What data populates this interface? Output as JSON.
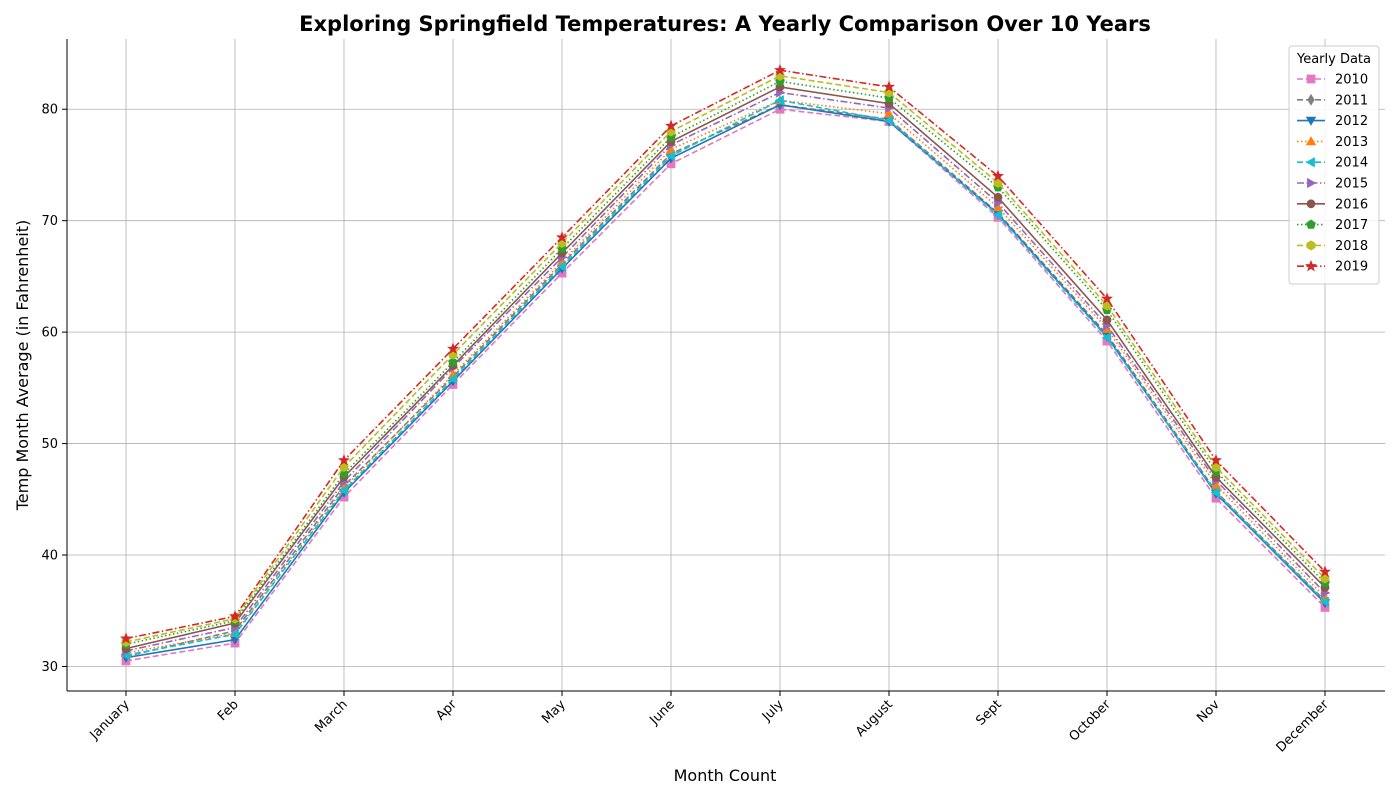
{
  "chart_data": {
    "type": "line",
    "title": "Exploring Springfield Temperatures: A Yearly Comparison Over 10 Years",
    "xlabel": "Month Count",
    "ylabel": "Temp Month Average (in Fahrenheit)",
    "categories": [
      "January",
      "Feb",
      "March",
      "Apr",
      "May",
      "June",
      "July",
      "August",
      "Sept",
      "October",
      "Nov",
      "December"
    ],
    "ylim": [
      27.8,
      86.3
    ],
    "yticks": [
      30,
      40,
      50,
      60,
      70,
      80
    ],
    "grid": true,
    "legend": {
      "title": "Yearly Data",
      "placement": "top-right"
    },
    "series": [
      {
        "name": "2010",
        "color": "#e377c2",
        "dash": "dashed",
        "marker": "square",
        "values": [
          30.5,
          32.1,
          45.2,
          55.3,
          65.3,
          75.1,
          80.0,
          78.9,
          70.3,
          59.2,
          45.1,
          35.3
        ]
      },
      {
        "name": "2011",
        "color": "#7f7f7f",
        "dash": "dashed",
        "marker": "thin_diamond",
        "values": [
          30.9,
          33.2,
          46.2,
          56.0,
          66.1,
          76.0,
          80.4,
          79.1,
          70.7,
          59.8,
          45.7,
          35.9
        ]
      },
      {
        "name": "2012",
        "color": "#1f77b4",
        "dash": "solid",
        "marker": "triangle_down",
        "values": [
          30.8,
          32.4,
          45.6,
          55.6,
          65.7,
          75.6,
          80.4,
          78.9,
          70.6,
          59.6,
          45.5,
          35.7
        ]
      },
      {
        "name": "2013",
        "color": "#ff7f0e",
        "dash": "dotted",
        "marker": "triangle_up",
        "values": [
          31.2,
          33.0,
          46.0,
          56.2,
          66.3,
          76.4,
          80.8,
          79.6,
          71.2,
          60.3,
          46.3,
          36.2
        ]
      },
      {
        "name": "2014",
        "color": "#17becf",
        "dash": "dashed",
        "marker": "triangle_left",
        "values": [
          31.0,
          32.9,
          45.8,
          55.8,
          65.9,
          75.8,
          80.8,
          79.0,
          70.5,
          59.5,
          45.6,
          35.8
        ]
      },
      {
        "name": "2015",
        "color": "#9467bd",
        "dash": "dashdot",
        "marker": "triangle_right",
        "values": [
          31.4,
          33.5,
          46.6,
          56.8,
          66.7,
          76.8,
          81.5,
          80.1,
          71.6,
          60.6,
          46.7,
          36.6
        ]
      },
      {
        "name": "2016",
        "color": "#8c564b",
        "dash": "solid",
        "marker": "circle",
        "values": [
          31.6,
          33.9,
          47.0,
          57.0,
          67.1,
          77.1,
          82.0,
          80.5,
          72.1,
          61.1,
          47.0,
          37.1
        ]
      },
      {
        "name": "2017",
        "color": "#2ca02c",
        "dash": "dotted",
        "marker": "pentagon",
        "values": [
          32.0,
          34.1,
          47.3,
          57.3,
          67.5,
          77.5,
          82.5,
          81.0,
          73.0,
          62.0,
          47.5,
          37.5
        ]
      },
      {
        "name": "2018",
        "color": "#bcbd22",
        "dash": "dashed",
        "marker": "hexagon",
        "values": [
          32.2,
          34.3,
          47.9,
          58.0,
          68.0,
          78.0,
          83.0,
          81.5,
          73.4,
          62.4,
          47.9,
          37.9
        ]
      },
      {
        "name": "2019",
        "color": "#d62728",
        "dash": "dashdot",
        "marker": "star",
        "values": [
          32.5,
          34.5,
          48.5,
          58.5,
          68.5,
          78.5,
          83.5,
          82.0,
          74.0,
          63.0,
          48.5,
          38.5
        ]
      }
    ]
  }
}
